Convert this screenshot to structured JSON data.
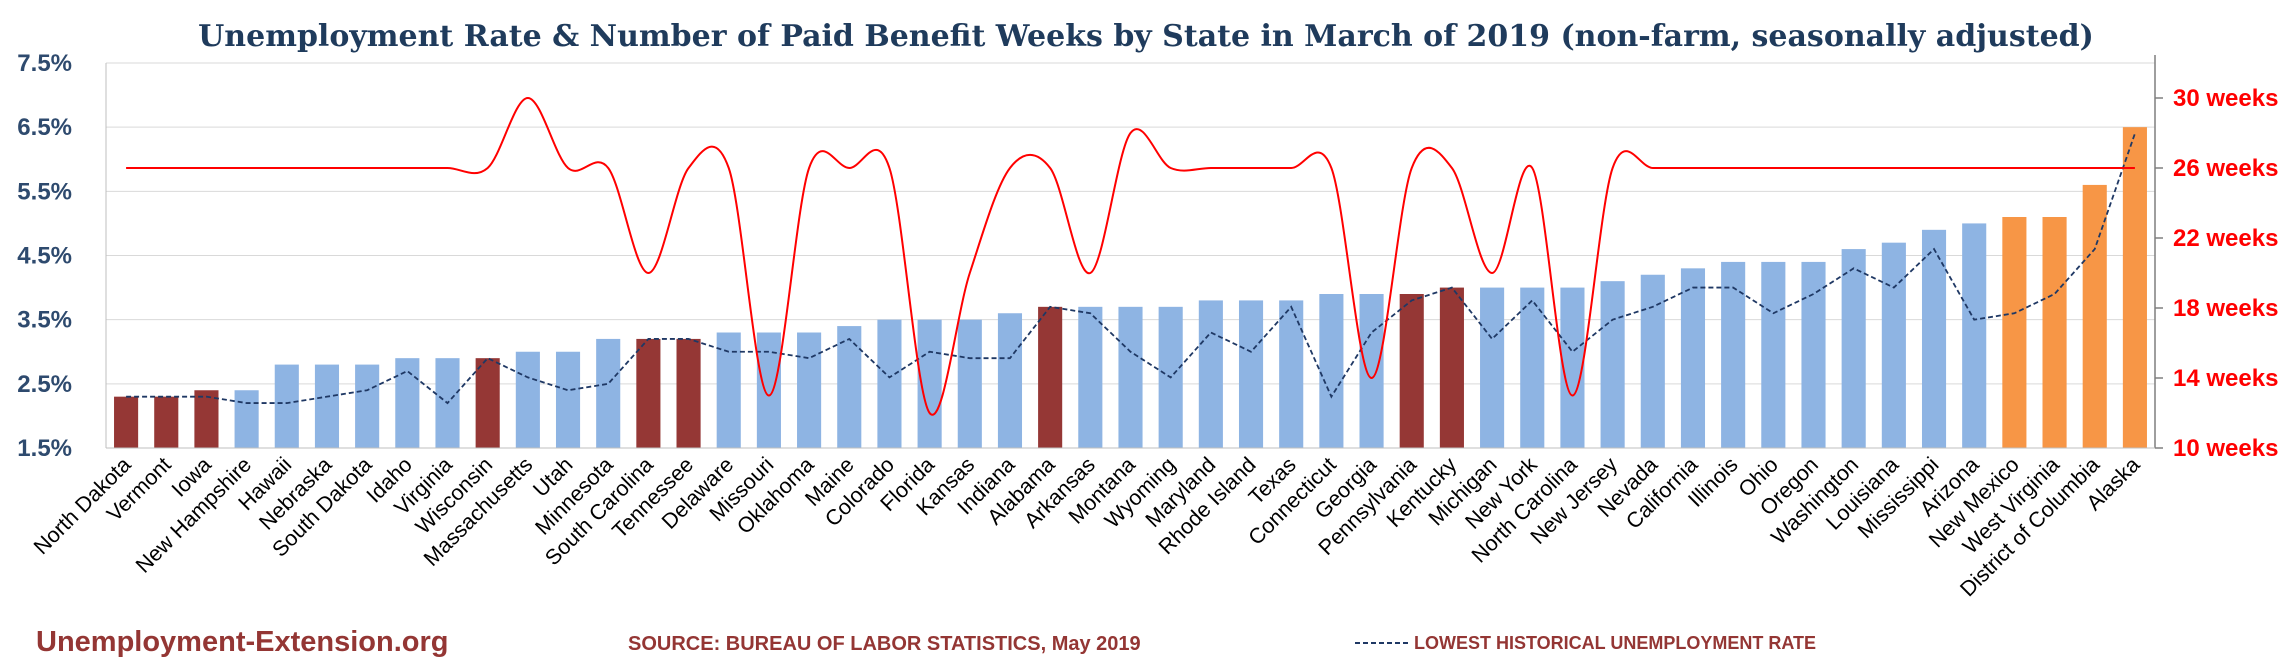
{
  "chart_data": {
    "type": "bar",
    "title": "Unemployment Rate & Number of Paid Benefit Weeks by State in March of 2019 (non-farm, seasonally adjusted)",
    "ylim": [
      1.5,
      7.5
    ],
    "y_ticks": [
      "1.5%",
      "2.5%",
      "3.5%",
      "4.5%",
      "5.5%",
      "6.5%",
      "7.5%"
    ],
    "y2lim": [
      10,
      32
    ],
    "y2_ticks": [
      "10 weeks",
      "14 weeks",
      "18 weeks",
      "22 weeks",
      "26 weeks",
      "30 weeks"
    ],
    "grid": true,
    "colors": {
      "default": "#8eb4e3",
      "below_limit": "#953735",
      "above_limit": "#f79646",
      "weeks_line": "#ff0000",
      "historical_line": "#1f3864"
    },
    "categories": [
      "North Dakota",
      "Vermont",
      "Iowa",
      "New Hampshire",
      "Hawaii",
      "Nebraska",
      "South Dakota",
      "Idaho",
      "Virginia",
      "Wisconsin",
      "Massachusetts",
      "Utah",
      "Minnesota",
      "South Carolina",
      "Tennessee",
      "Delaware",
      "Missouri",
      "Oklahoma",
      "Maine",
      "Colorado",
      "Florida",
      "Kansas",
      "Indiana",
      "Alabama",
      "Arkansas",
      "Montana",
      "Wyoming",
      "Maryland",
      "Rhode Island",
      "Texas",
      "Connecticut",
      "Georgia",
      "Pennsylvania",
      "Kentucky",
      "Michigan",
      "New York",
      "North Carolina",
      "New Jersey",
      "Nevada",
      "California",
      "Illinois",
      "Ohio",
      "Oregon",
      "Washington",
      "Louisiana",
      "Mississippi",
      "Arizona",
      "New Mexico",
      "West Virginia",
      "District of Columbia",
      "Alaska"
    ],
    "series": [
      {
        "name": "Unemployment Rate",
        "kind": "bar",
        "values": [
          2.3,
          2.3,
          2.4,
          2.4,
          2.8,
          2.8,
          2.8,
          2.9,
          2.9,
          2.9,
          3.0,
          3.0,
          3.2,
          3.2,
          3.2,
          3.3,
          3.3,
          3.3,
          3.4,
          3.5,
          3.5,
          3.5,
          3.6,
          3.7,
          3.7,
          3.7,
          3.7,
          3.8,
          3.8,
          3.8,
          3.9,
          3.9,
          3.9,
          4.0,
          4.0,
          4.0,
          4.0,
          4.1,
          4.2,
          4.3,
          4.4,
          4.4,
          4.4,
          4.6,
          4.7,
          4.9,
          5.0,
          5.1,
          5.1,
          5.6,
          6.5
        ],
        "color_keys": [
          "below_limit",
          "below_limit",
          "below_limit",
          "default",
          "default",
          "default",
          "default",
          "default",
          "default",
          "below_limit",
          "default",
          "default",
          "default",
          "below_limit",
          "below_limit",
          "default",
          "default",
          "default",
          "default",
          "default",
          "default",
          "default",
          "default",
          "below_limit",
          "default",
          "default",
          "default",
          "default",
          "default",
          "default",
          "default",
          "default",
          "below_limit",
          "below_limit",
          "default",
          "default",
          "default",
          "default",
          "default",
          "default",
          "default",
          "default",
          "default",
          "default",
          "default",
          "default",
          "default",
          "above_limit",
          "above_limit",
          "above_limit",
          "above_limit"
        ]
      },
      {
        "name": "Number of Paid Benefit Weeks",
        "kind": "line",
        "axis": "right",
        "values": [
          26,
          26,
          26,
          26,
          26,
          26,
          26,
          26,
          26,
          26,
          30,
          26,
          26,
          20,
          26,
          26,
          13,
          26,
          26,
          26,
          12,
          20,
          26,
          26,
          20,
          28,
          26,
          26,
          26,
          26,
          26,
          14,
          26,
          26,
          20,
          26,
          13,
          26,
          26,
          26,
          26,
          26,
          26,
          26,
          26,
          26,
          26,
          26,
          26,
          26,
          26
        ]
      },
      {
        "name": "LOWEST HISTORICAL UNEMPLOYMENT RATE",
        "kind": "line",
        "style": "dashed",
        "values": [
          2.3,
          2.3,
          2.3,
          2.2,
          2.2,
          2.3,
          2.4,
          2.7,
          2.2,
          2.9,
          2.6,
          2.4,
          2.5,
          3.2,
          3.2,
          3.0,
          3.0,
          2.9,
          3.2,
          2.6,
          3.0,
          2.9,
          2.9,
          3.7,
          3.6,
          3.0,
          2.6,
          3.3,
          3.0,
          3.7,
          2.3,
          3.3,
          3.8,
          4.0,
          3.2,
          3.8,
          3.0,
          3.5,
          3.7,
          4.0,
          4.0,
          3.6,
          3.9,
          4.3,
          4.0,
          4.6,
          3.5,
          3.6,
          3.9,
          4.6,
          6.4
        ]
      }
    ]
  },
  "footer": {
    "brand": "Unemployment-Extension.org",
    "source": "SOURCE: BUREAU OF LABOR STATISTICS, May 2019",
    "legend_label": "LOWEST HISTORICAL UNEMPLOYMENT RATE"
  }
}
